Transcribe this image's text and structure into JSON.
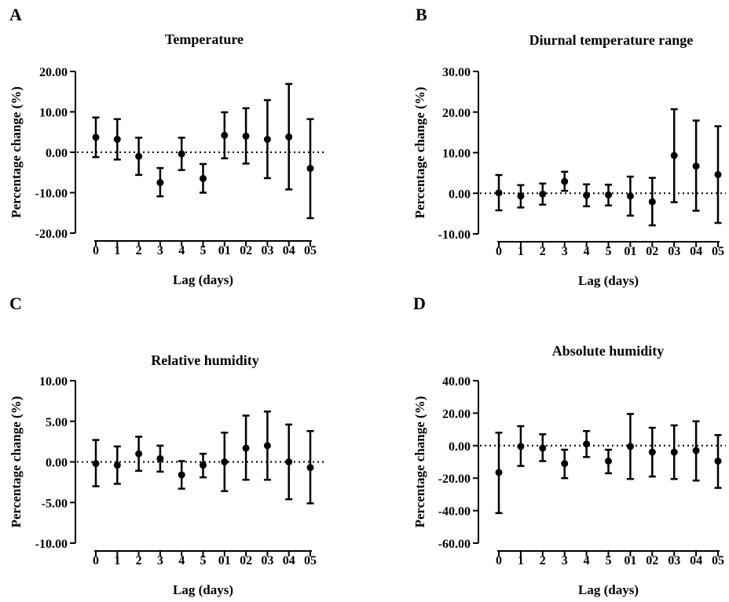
{
  "chart_data": [
    {
      "panel_label": "A",
      "type": "scatter",
      "title": "Temperature",
      "xlabel": "Lag (days)",
      "ylabel": "Percentage change (%)",
      "categories": [
        "0",
        "1",
        "2",
        "3",
        "4",
        "5",
        "01",
        "02",
        "03",
        "04",
        "05"
      ],
      "values": [
        3.7,
        3.2,
        -1.0,
        -7.5,
        -0.4,
        -6.5,
        4.2,
        4.0,
        3.2,
        3.8,
        -4.0
      ],
      "lower": [
        -1.2,
        -1.8,
        -5.6,
        -10.9,
        -4.4,
        -10.0,
        -1.5,
        -2.8,
        -6.4,
        -9.2,
        -16.3
      ],
      "upper": [
        8.6,
        8.2,
        3.6,
        -3.9,
        3.6,
        -2.9,
        9.9,
        10.9,
        12.9,
        16.9,
        8.2
      ],
      "yticks": [
        "20.00",
        "10.00",
        "0.00",
        "-10.00",
        "-20.00"
      ],
      "ylim": [
        -20,
        20
      ],
      "reference_line": 0,
      "grid": false
    },
    {
      "panel_label": "B",
      "type": "scatter",
      "title": "Diurnal temperature range",
      "xlabel": "Lag (days)",
      "ylabel": "Percentage change (%)",
      "categories": [
        "0",
        "1",
        "2",
        "3",
        "4",
        "5",
        "01",
        "02",
        "03",
        "04",
        "05"
      ],
      "values": [
        0.1,
        -0.7,
        -0.2,
        2.9,
        -0.5,
        -0.4,
        -0.7,
        -2.1,
        9.3,
        6.7,
        4.6
      ],
      "lower": [
        -4.2,
        -3.5,
        -2.8,
        0.6,
        -3.2,
        -3.0,
        -5.5,
        -7.9,
        -2.2,
        -4.3,
        -7.3
      ],
      "upper": [
        4.5,
        2.0,
        2.4,
        5.3,
        2.2,
        2.1,
        4.1,
        3.8,
        20.7,
        17.9,
        16.5
      ],
      "yticks": [
        "30.00",
        "20.00",
        "10.00",
        "0.00",
        "-10.00"
      ],
      "ylim": [
        -10,
        30
      ],
      "reference_line": 0,
      "grid": false
    },
    {
      "panel_label": "C",
      "type": "scatter",
      "title": "Relative humidity",
      "xlabel": "Lag (days)",
      "ylabel": "Percentage change (%)",
      "categories": [
        "0",
        "1",
        "2",
        "3",
        "4",
        "5",
        "01",
        "02",
        "03",
        "04",
        "05"
      ],
      "values": [
        -0.2,
        -0.4,
        1.0,
        0.4,
        -1.6,
        -0.4,
        0.0,
        1.7,
        2.0,
        0.0,
        -0.7
      ],
      "lower": [
        -3.0,
        -2.7,
        -1.1,
        -1.2,
        -3.3,
        -1.9,
        -3.6,
        -2.2,
        -2.2,
        -4.6,
        -5.1
      ],
      "upper": [
        2.7,
        1.9,
        3.1,
        2.0,
        0.1,
        1.0,
        3.6,
        5.7,
        6.2,
        4.6,
        3.8
      ],
      "yticks": [
        "10.00",
        "5.00",
        "0.00",
        "-5.00",
        "-10.00"
      ],
      "ylim": [
        -10,
        10
      ],
      "reference_line": 0,
      "grid": false
    },
    {
      "panel_label": "D",
      "type": "scatter",
      "title": "Absolute humidity",
      "xlabel": "Lag (days)",
      "ylabel": "Percentage change (%)",
      "categories": [
        "0",
        "1",
        "2",
        "3",
        "4",
        "5",
        "01",
        "02",
        "03",
        "04",
        "05"
      ],
      "values": [
        -16.5,
        -0.5,
        -1.5,
        -11.0,
        1.0,
        -9.5,
        -0.5,
        -4.0,
        -4.0,
        -3.0,
        -9.5
      ],
      "lower": [
        -41.5,
        -12.5,
        -9.5,
        -20.0,
        -7.0,
        -17.0,
        -20.5,
        -19.0,
        -20.5,
        -21.5,
        -26.0
      ],
      "upper": [
        8.0,
        12.0,
        7.0,
        -2.5,
        9.0,
        -2.5,
        19.5,
        11.0,
        12.5,
        15.0,
        6.5
      ],
      "yticks": [
        "40.00",
        "20.00",
        "0.00",
        "-20.00",
        "-40.00",
        "-60.00"
      ],
      "ylim": [
        -60,
        40
      ],
      "reference_line": 0,
      "grid": false
    }
  ]
}
